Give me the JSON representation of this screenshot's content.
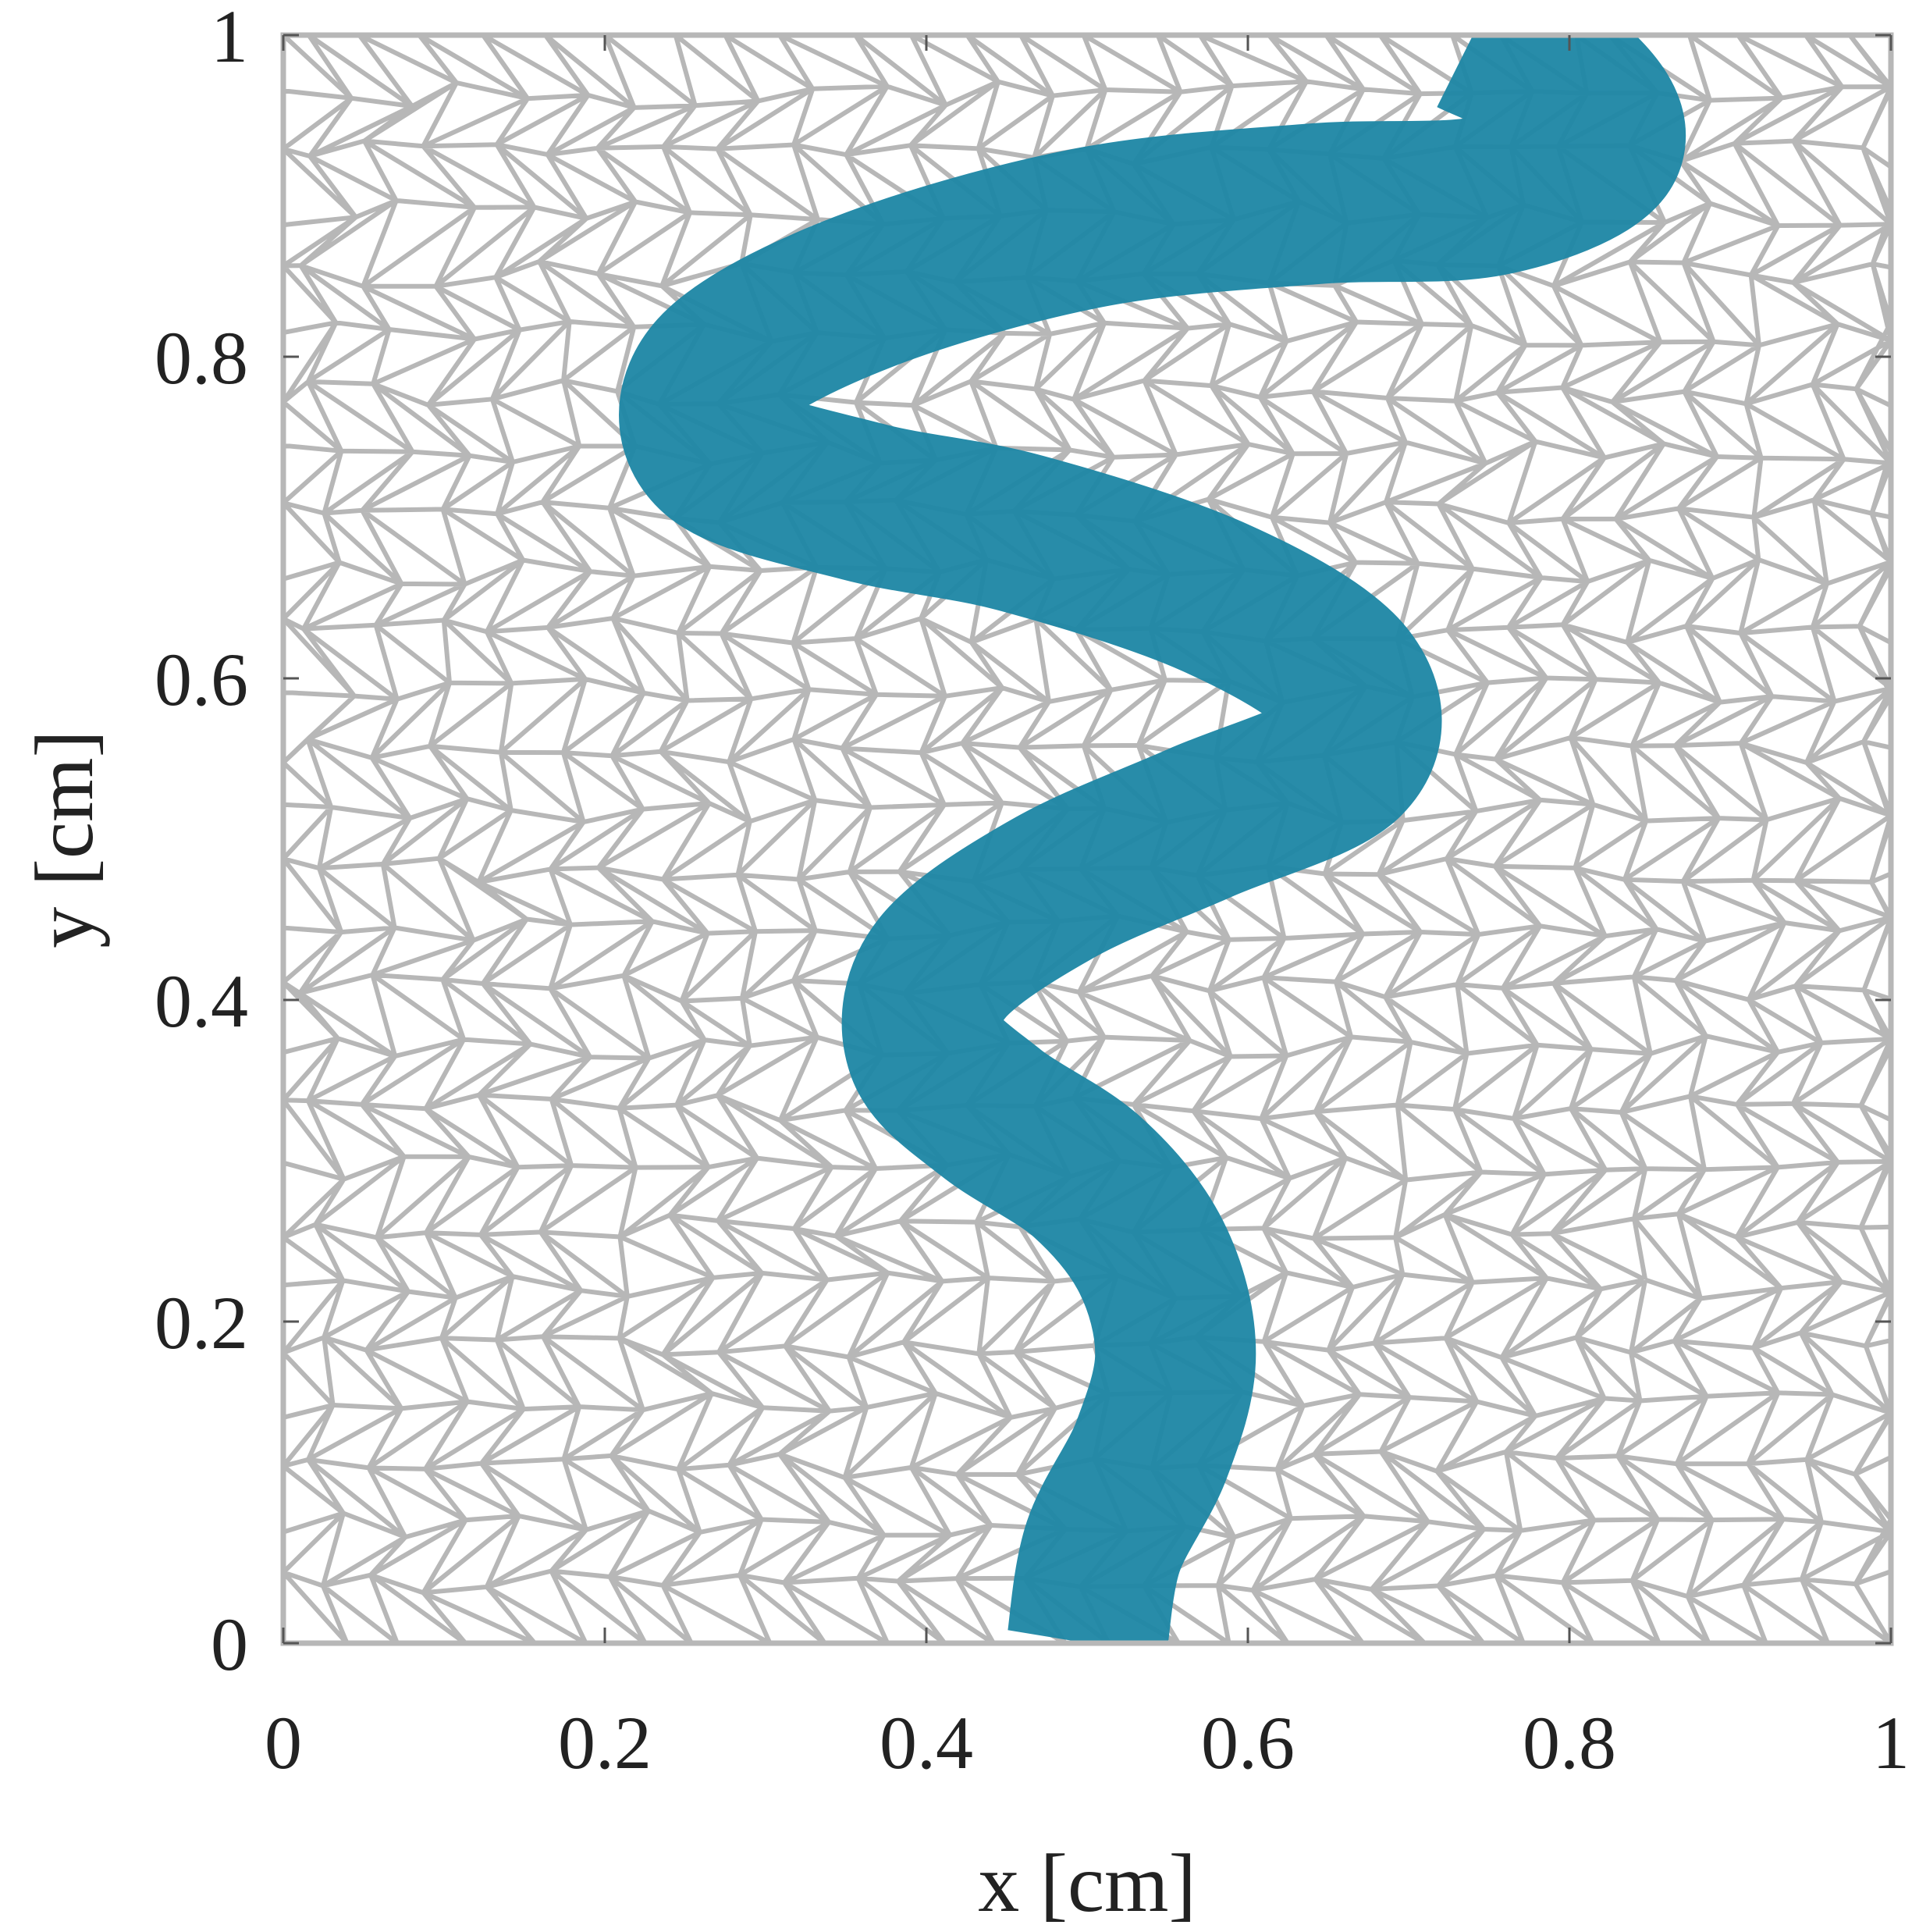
{
  "chart_data": {
    "type": "scatter",
    "title": "",
    "xlabel": "x [cm]",
    "ylabel": "y [cm]",
    "xlim": [
      0,
      1
    ],
    "ylim": [
      0,
      1
    ],
    "xticks": [
      0,
      0.2,
      0.4,
      0.6,
      0.8,
      1
    ],
    "yticks": [
      0,
      0.2,
      0.4,
      0.6,
      0.8,
      1
    ],
    "xtick_labels": [
      "0",
      "0.2",
      "0.4",
      "0.6",
      "0.8",
      "1"
    ],
    "ytick_labels": [
      "0",
      "0.2",
      "0.4",
      "0.6",
      "0.8",
      "1"
    ],
    "grid": false,
    "background": {
      "type": "triangular-mesh",
      "color": "#b7b7b7",
      "approx_nodes_per_side": 27
    },
    "series": [
      {
        "color": "#1f87a6",
        "style": "dense point cloud (meandering band)",
        "width": 0.1,
        "centerline": [
          {
            "x": 0.5,
            "y": 0.0
          },
          {
            "x": 0.51,
            "y": 0.06
          },
          {
            "x": 0.54,
            "y": 0.12
          },
          {
            "x": 0.555,
            "y": 0.18
          },
          {
            "x": 0.54,
            "y": 0.24
          },
          {
            "x": 0.5,
            "y": 0.29
          },
          {
            "x": 0.44,
            "y": 0.33
          },
          {
            "x": 0.4,
            "y": 0.37
          },
          {
            "x": 0.41,
            "y": 0.42
          },
          {
            "x": 0.48,
            "y": 0.47
          },
          {
            "x": 0.57,
            "y": 0.51
          },
          {
            "x": 0.66,
            "y": 0.55
          },
          {
            "x": 0.66,
            "y": 0.6
          },
          {
            "x": 0.58,
            "y": 0.65
          },
          {
            "x": 0.46,
            "y": 0.69
          },
          {
            "x": 0.36,
            "y": 0.71
          },
          {
            "x": 0.27,
            "y": 0.74
          },
          {
            "x": 0.27,
            "y": 0.79
          },
          {
            "x": 0.36,
            "y": 0.84
          },
          {
            "x": 0.5,
            "y": 0.88
          },
          {
            "x": 0.64,
            "y": 0.895
          },
          {
            "x": 0.75,
            "y": 0.9
          },
          {
            "x": 0.82,
            "y": 0.93
          },
          {
            "x": 0.8,
            "y": 0.97
          },
          {
            "x": 0.74,
            "y": 1.0
          }
        ]
      }
    ]
  }
}
